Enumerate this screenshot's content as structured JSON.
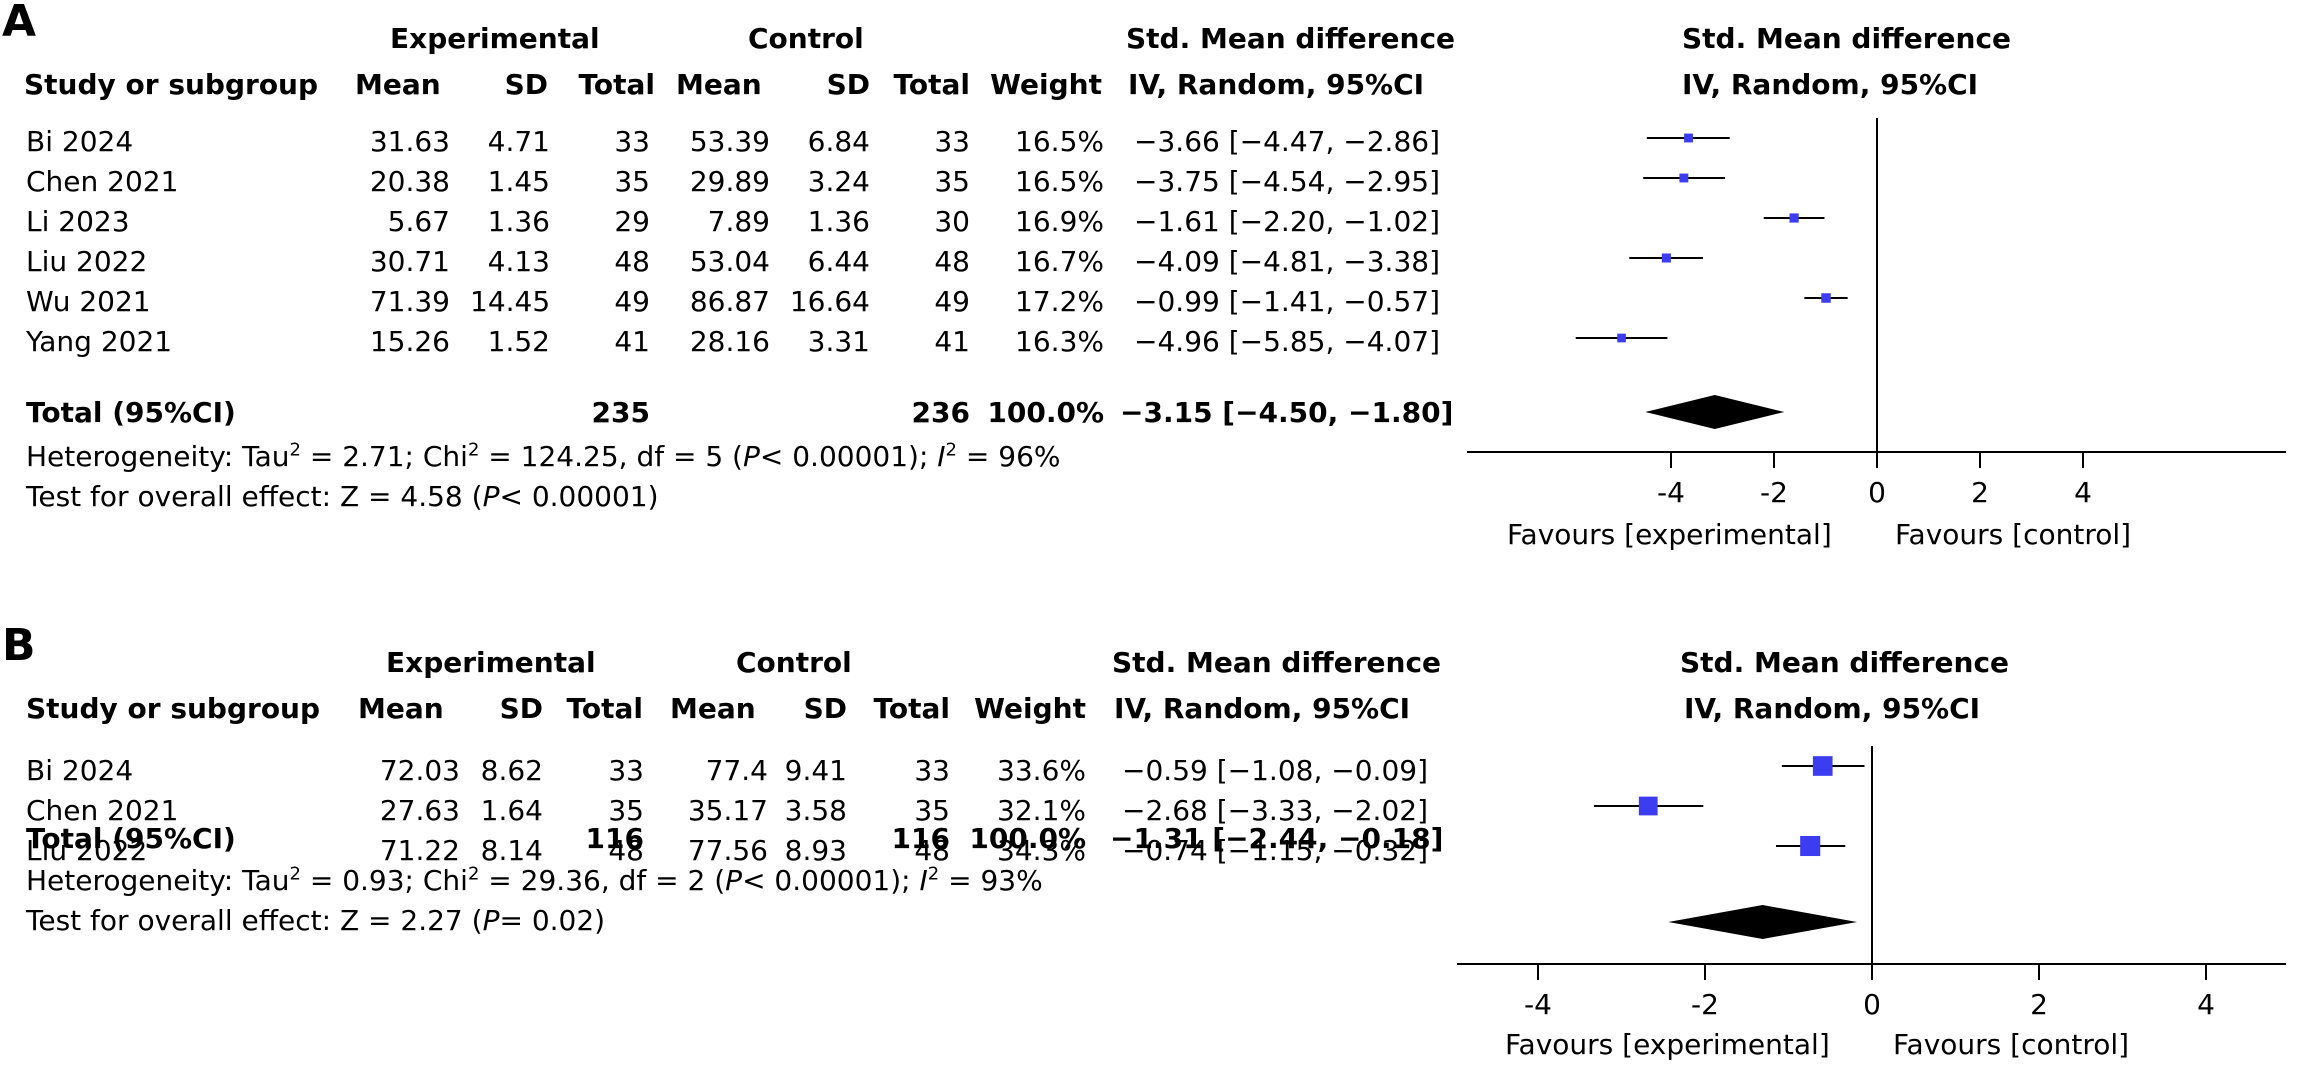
{
  "panels": [
    {
      "label": "A",
      "headers": {
        "group_experimental": "Experimental",
        "group_control": "Control",
        "effect_title": "Std. Mean difference",
        "study": "Study or subgroup",
        "mean": "Mean",
        "sd": "SD",
        "total": "Total",
        "weight": "Weight",
        "method": "IV, Random, 95%CI"
      },
      "rows": [
        {
          "study": "Bi 2024",
          "e_mean": "31.63",
          "e_sd": "4.71",
          "e_total": "33",
          "c_mean": "53.39",
          "c_sd": "6.84",
          "c_total": "33",
          "weight": "16.5%",
          "ci": "−3.66 [−4.47, −2.86]"
        },
        {
          "study": "Chen 2021",
          "e_mean": "20.38",
          "e_sd": "1.45",
          "e_total": "35",
          "c_mean": "29.89",
          "c_sd": "3.24",
          "c_total": "35",
          "weight": "16.5%",
          "ci": "−3.75 [−4.54, −2.95]"
        },
        {
          "study": "Li 2023",
          "e_mean": "5.67",
          "e_sd": "1.36",
          "e_total": "29",
          "c_mean": "7.89",
          "c_sd": "1.36",
          "c_total": "30",
          "weight": "16.9%",
          "ci": "−1.61 [−2.20, −1.02]"
        },
        {
          "study": "Liu 2022",
          "e_mean": "30.71",
          "e_sd": "4.13",
          "e_total": "48",
          "c_mean": "53.04",
          "c_sd": "6.44",
          "c_total": "48",
          "weight": "16.7%",
          "ci": "−4.09 [−4.81, −3.38]"
        },
        {
          "study": "Wu 2021",
          "e_mean": "71.39",
          "e_sd": "14.45",
          "e_total": "49",
          "c_mean": "86.87",
          "c_sd": "16.64",
          "c_total": "49",
          "weight": "17.2%",
          "ci": "−0.99 [−1.41, −0.57]"
        },
        {
          "study": "Yang 2021",
          "e_mean": "15.26",
          "e_sd": "1.52",
          "e_total": "41",
          "c_mean": "28.16",
          "c_sd": "3.31",
          "c_total": "41",
          "weight": "16.3%",
          "ci": "−4.96 [−5.85, −4.07]"
        }
      ],
      "total": {
        "label": "Total (95%CI)",
        "e_total": "235",
        "c_total": "236",
        "weight": "100.0%",
        "ci": "−3.15 [−4.50, −1.80]"
      },
      "heterogeneity": {
        "tau_pre": "Heterogeneity: Tau",
        "tau_val": " = 2.71; Chi",
        "chi_val": " = 124.25, df = 5 (",
        "p_italic": "P",
        "p_val": "< 0.00001); ",
        "i_italic": "I",
        "i_val": " = 96%"
      },
      "overall": {
        "pre": "Test for overall effect: Z = 4.58 (",
        "p_italic": "P",
        "post": "< 0.00001)"
      },
      "favours_left": "Favours [experimental]",
      "favours_right": "Favours [control]"
    },
    {
      "label": "B",
      "headers": {
        "group_experimental": "Experimental",
        "group_control": "Control",
        "effect_title": "Std. Mean difference",
        "study": "Study or subgroup",
        "mean": "Mean",
        "sd": "SD",
        "total": "Total",
        "weight": "Weight",
        "method": "IV, Random, 95%CI"
      },
      "rows": [
        {
          "study": "Bi 2024",
          "e_mean": "72.03",
          "e_sd": "8.62",
          "e_total": "33",
          "c_mean": "77.4",
          "c_sd": "9.41",
          "c_total": "33",
          "weight": "33.6%",
          "ci": "−0.59 [−1.08, −0.09]"
        },
        {
          "study": "Chen 2021",
          "e_mean": "27.63",
          "e_sd": "1.64",
          "e_total": "35",
          "c_mean": "35.17",
          "c_sd": "3.58",
          "c_total": "35",
          "weight": "32.1%",
          "ci": "−2.68 [−3.33, −2.02]"
        },
        {
          "study": "Liu 2022",
          "e_mean": "71.22",
          "e_sd": "8.14",
          "e_total": "48",
          "c_mean": "77.56",
          "c_sd": "8.93",
          "c_total": "48",
          "weight": "34.3%",
          "ci": "−0.74 [−1.15, −0.32]"
        }
      ],
      "total": {
        "label": "Total (95%CI)",
        "e_total": "116",
        "c_total": "116",
        "weight": "100.0%",
        "ci": "−1.31 [−2.44, −0.18]"
      },
      "heterogeneity": {
        "tau_pre": "Heterogeneity: Tau",
        "tau_val": " = 0.93; Chi",
        "chi_val": " = 29.36, df = 2 (",
        "p_italic": "P",
        "p_val": "< 0.00001); ",
        "i_italic": "I",
        "i_val": " = 93%"
      },
      "overall": {
        "pre": "Test for overall effect: Z = 2.27 (",
        "p_italic": "P",
        "post": "= 0.02)"
      },
      "favours_left": "Favours [experimental]",
      "favours_right": "Favours [control]"
    }
  ],
  "colors": {
    "marker": "#3c3cf0",
    "diamond": "#000000",
    "axis": "#000000"
  },
  "chart_data": [
    {
      "type": "scatter",
      "studies": [
        "Bi 2024",
        "Chen 2021",
        "Li 2023",
        "Liu 2022",
        "Wu 2021",
        "Yang 2021"
      ],
      "smd": [
        -3.66,
        -3.75,
        -1.61,
        -4.09,
        -0.99,
        -4.96
      ],
      "ci_low": [
        -4.47,
        -4.54,
        -2.2,
        -4.81,
        -1.41,
        -5.85
      ],
      "ci_high": [
        -2.86,
        -2.95,
        -1.02,
        -3.38,
        -0.57,
        -4.07
      ],
      "weights": [
        16.5,
        16.5,
        16.9,
        16.7,
        17.2,
        16.3
      ],
      "pooled": {
        "smd": -3.15,
        "ci_low": -4.5,
        "ci_high": -1.8
      },
      "xticks": [
        "-4",
        "-2",
        "0",
        "2",
        "4"
      ],
      "tick_values": [
        -4,
        -2,
        0,
        2,
        4
      ],
      "xlim": [
        -8,
        8
      ],
      "title": "Std. Mean difference",
      "subtitle": "IV, Random, 95%CI"
    },
    {
      "type": "scatter",
      "studies": [
        "Bi 2024",
        "Chen 2021",
        "Liu 2022"
      ],
      "smd": [
        -0.59,
        -2.68,
        -0.74
      ],
      "ci_low": [
        -1.08,
        -3.33,
        -1.15
      ],
      "ci_high": [
        -0.09,
        -2.02,
        -0.32
      ],
      "weights": [
        33.6,
        32.1,
        34.3
      ],
      "pooled": {
        "smd": -1.31,
        "ci_low": -2.44,
        "ci_high": -0.18
      },
      "xticks": [
        "-4",
        "-2",
        "0",
        "2",
        "4"
      ],
      "tick_values": [
        -4,
        -2,
        0,
        2,
        4
      ],
      "xlim": [
        -5,
        5
      ],
      "title": "Std. Mean difference",
      "subtitle": "IV, Random, 95%CI"
    }
  ]
}
